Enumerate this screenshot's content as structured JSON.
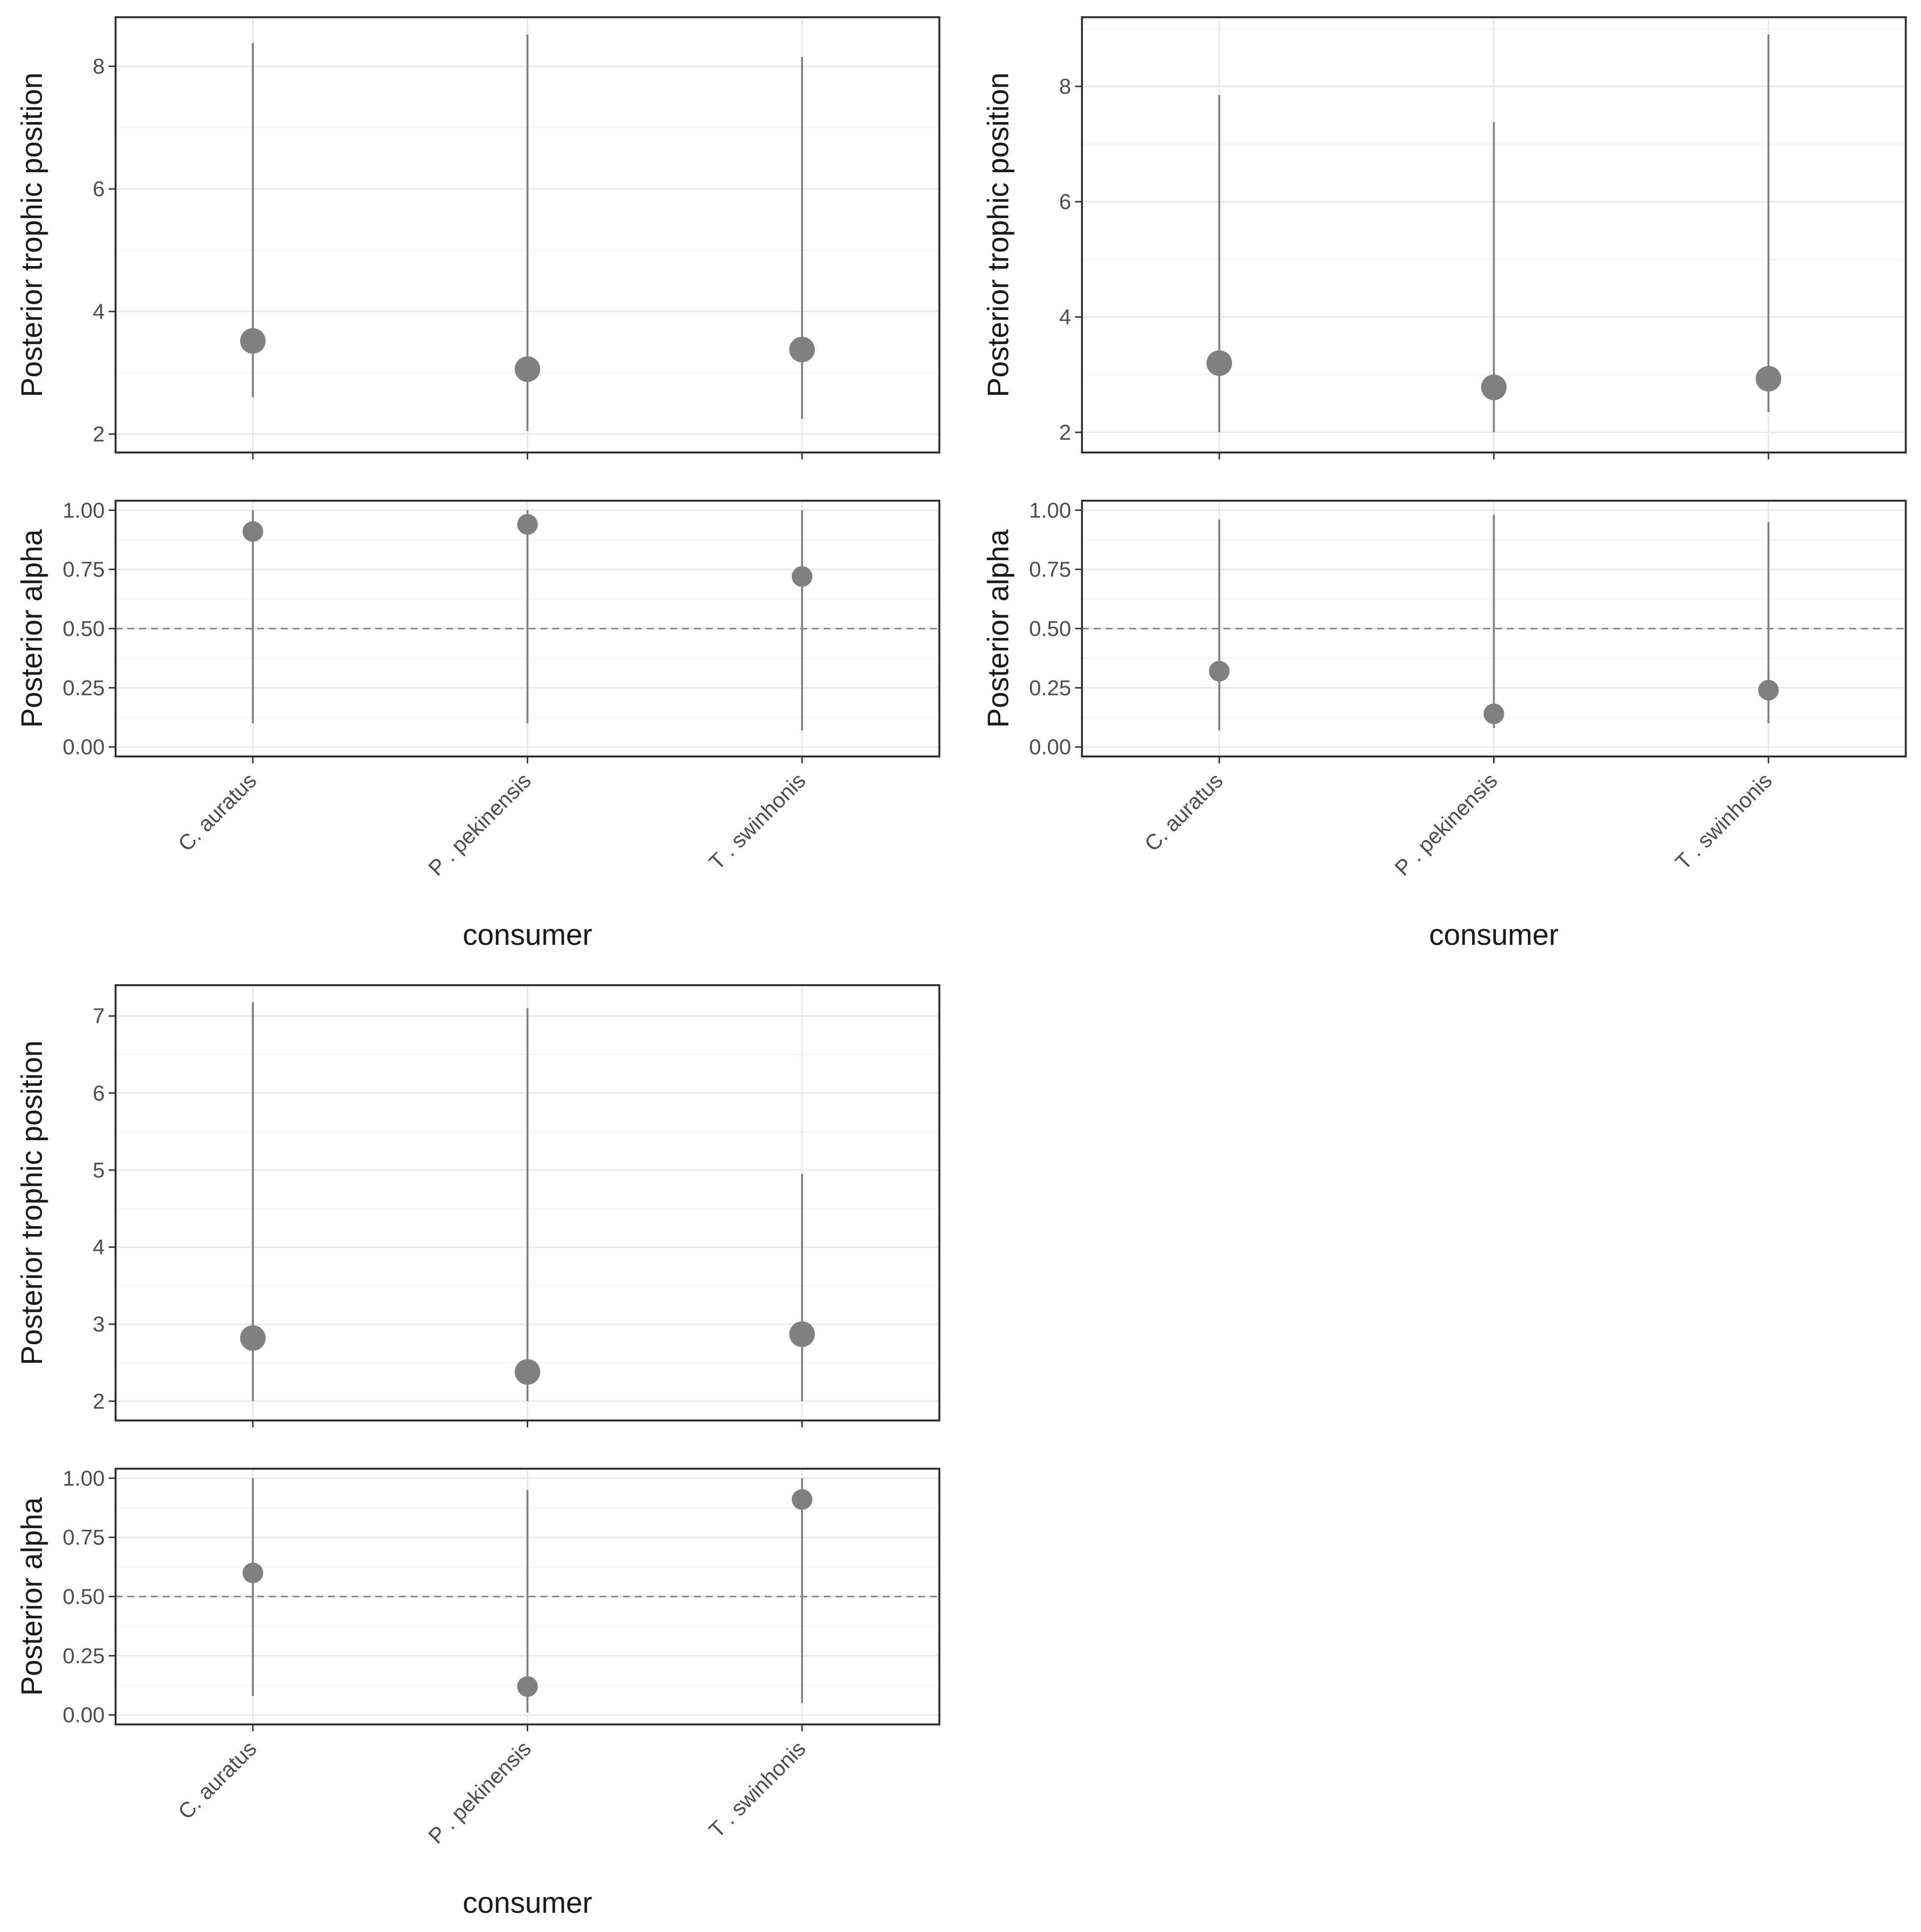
{
  "chart_data": [
    {
      "type": "scatter",
      "panel": "top-left",
      "categories": [
        "C. auratus",
        "P . pekinensis",
        "T . swinhonis"
      ],
      "trophic_position": {
        "ylabel": "Posterior trophic position",
        "ylim": [
          1.7,
          8.8
        ],
        "yticks": [
          "2",
          "4",
          "6",
          "8"
        ],
        "median": [
          3.52,
          3.06,
          3.38
        ],
        "lower": [
          2.6,
          2.05,
          2.25
        ],
        "upper": [
          8.38,
          8.52,
          8.15
        ]
      },
      "alpha": {
        "ylabel": "Posterior alpha",
        "ylim": [
          -0.04,
          1.04
        ],
        "yticks": [
          "0.00",
          "0.25",
          "0.50",
          "0.75",
          "1.00"
        ],
        "reference_line": 0.5,
        "median": [
          0.91,
          0.94,
          0.72
        ],
        "lower": [
          0.1,
          0.1,
          0.07
        ],
        "upper": [
          1.0,
          1.0,
          1.0
        ]
      },
      "xlabel": "consumer",
      "grid": true
    },
    {
      "type": "scatter",
      "panel": "top-right",
      "categories": [
        "C. auratus",
        "P . pekinensis",
        "T . swinhonis"
      ],
      "trophic_position": {
        "ylabel": "Posterior trophic position",
        "ylim": [
          1.65,
          9.2
        ],
        "yticks": [
          "2",
          "4",
          "6",
          "8"
        ],
        "median": [
          3.2,
          2.78,
          2.93
        ],
        "lower": [
          2.0,
          2.0,
          2.35
        ],
        "upper": [
          7.85,
          7.38,
          8.9
        ]
      },
      "alpha": {
        "ylabel": "Posterior alpha",
        "ylim": [
          -0.04,
          1.04
        ],
        "yticks": [
          "0.00",
          "0.25",
          "0.50",
          "0.75",
          "1.00"
        ],
        "reference_line": 0.5,
        "median": [
          0.32,
          0.14,
          0.24
        ],
        "lower": [
          0.07,
          0.08,
          0.1
        ],
        "upper": [
          0.96,
          0.98,
          0.95
        ]
      },
      "xlabel": "consumer",
      "grid": true
    },
    {
      "type": "scatter",
      "panel": "bottom-left",
      "categories": [
        "C. auratus",
        "P . pekinensis",
        "T . swinhonis"
      ],
      "trophic_position": {
        "ylabel": "Posterior trophic position",
        "ylim": [
          1.75,
          7.4
        ],
        "yticks": [
          "2",
          "3",
          "4",
          "5",
          "6",
          "7"
        ],
        "median": [
          2.82,
          2.38,
          2.87
        ],
        "lower": [
          2.0,
          2.0,
          2.0
        ],
        "upper": [
          7.18,
          7.1,
          4.95
        ]
      },
      "alpha": {
        "ylabel": "Posterior alpha",
        "ylim": [
          -0.04,
          1.04
        ],
        "yticks": [
          "0.00",
          "0.25",
          "0.50",
          "0.75",
          "1.00"
        ],
        "reference_line": 0.5,
        "median": [
          0.6,
          0.12,
          0.91
        ],
        "lower": [
          0.08,
          0.01,
          0.05
        ],
        "upper": [
          1.0,
          0.95,
          1.0
        ]
      },
      "xlabel": "consumer",
      "grid": true
    }
  ],
  "colors": {
    "point": "#808080",
    "interval": "#808080",
    "panel_border": "#333333",
    "grid_major": "#e8e8e8",
    "grid_minor": "#f2f2f2",
    "reference_line": "#7f7f7f"
  }
}
